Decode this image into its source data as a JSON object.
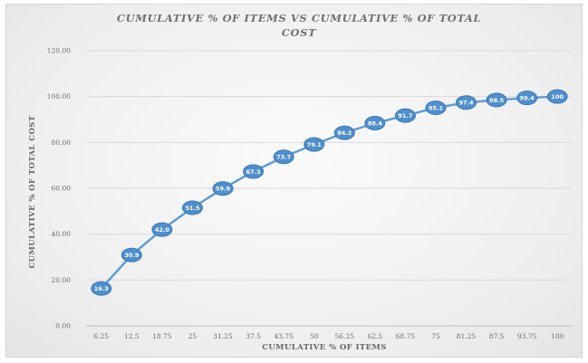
{
  "chart_data": {
    "type": "line",
    "title_lines": [
      "CUMULATIVE % OF ITEMS VS CUMULATIVE % OF TOTAL",
      "COST"
    ],
    "xlabel": "CUMULATIVE % OF ITEMS",
    "ylabel": "CUMULATIVE % OF TOTAL COST",
    "ylim": [
      0,
      120
    ],
    "y_ticks": [
      "0.00",
      "20.00",
      "40.00",
      "60.00",
      "80.00",
      "100.00",
      "120.00"
    ],
    "categories": [
      "6.25",
      "12.5",
      "18.75",
      "25",
      "31.25",
      "37.5",
      "43.75",
      "50",
      "56.25",
      "62.5",
      "68.75",
      "75",
      "81.25",
      "87.5",
      "93.75",
      "100"
    ],
    "series": [
      {
        "values": [
          16.3,
          30.9,
          42.0,
          51.5,
          59.9,
          67.3,
          73.7,
          79.1,
          84.2,
          88.4,
          91.7,
          95.1,
          97.4,
          98.5,
          99.4,
          100
        ],
        "labels": [
          "16.3",
          "30.9",
          "42.0",
          "51.5",
          "59.9",
          "67.3",
          "73.7",
          "79.1",
          "84.2",
          "88.4",
          "91.7",
          "95.1",
          "97.4",
          "98.5",
          "99.4",
          "100"
        ]
      }
    ],
    "gridlines": true,
    "legend": "none",
    "colors": {
      "line": "#5b9bd5",
      "marker": "#4f8fcd",
      "marker_edge": "#3a78b8",
      "grid": "#d9d9d9"
    }
  }
}
